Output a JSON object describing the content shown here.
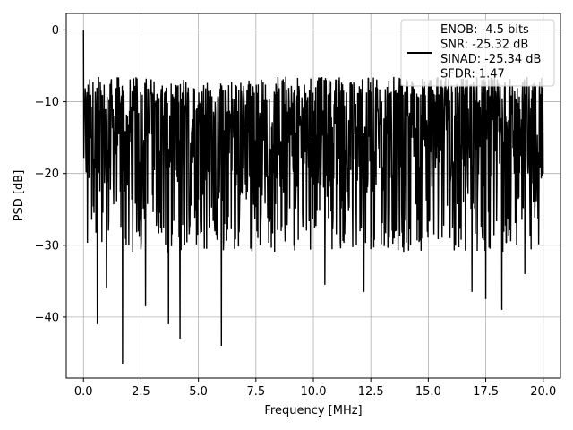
{
  "chart_data": {
    "type": "line",
    "xlabel": "Frequency [MHz]",
    "ylabel": "PSD [dB]",
    "xlim": [
      -0.75,
      20.75
    ],
    "ylim": [
      -48.5,
      2.3
    ],
    "xticks": [
      0.0,
      2.5,
      5.0,
      7.5,
      10.0,
      12.5,
      15.0,
      17.5,
      20.0
    ],
    "xtick_labels": [
      "0.0",
      "2.5",
      "5.0",
      "7.5",
      "10.0",
      "12.5",
      "15.0",
      "17.5",
      "20.0"
    ],
    "yticks": [
      0,
      -10,
      -20,
      -30,
      -40
    ],
    "ytick_labels": [
      "0",
      "−10",
      "−20",
      "−30",
      "−40"
    ],
    "grid": true,
    "legend_position": "top-right",
    "series": [
      {
        "color": "#000000",
        "x_start": 0.0,
        "x_end": 20.0,
        "spikes": [
          {
            "x": 0.0,
            "y": 0.0
          },
          {
            "x": 0.6,
            "y": -41.0
          },
          {
            "x": 1.0,
            "y": -36.0
          },
          {
            "x": 1.7,
            "y": -46.5
          },
          {
            "x": 2.7,
            "y": -38.5
          },
          {
            "x": 3.7,
            "y": -41.0
          },
          {
            "x": 4.2,
            "y": -43.0
          },
          {
            "x": 6.0,
            "y": -44.0
          },
          {
            "x": 10.5,
            "y": -35.5
          },
          {
            "x": 12.2,
            "y": -36.5
          },
          {
            "x": 16.9,
            "y": -36.5
          },
          {
            "x": 17.5,
            "y": -37.5
          },
          {
            "x": 18.2,
            "y": -39.0
          },
          {
            "x": 19.2,
            "y": -34.0
          }
        ],
        "typical_max": -6.5,
        "typical_min": -26.0,
        "center": -15.5
      }
    ],
    "legend_entries": [
      "ENOB: -4.5 bits",
      "SNR: -25.32 dB",
      "SINAD: -25.34 dB",
      "SFDR: 1.47"
    ]
  }
}
